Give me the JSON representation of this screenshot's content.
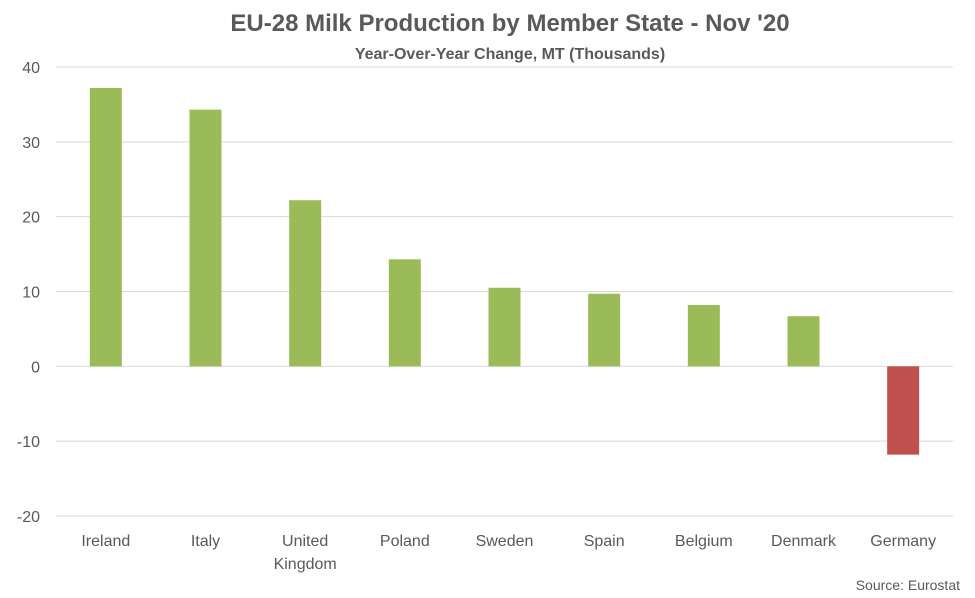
{
  "chart_data": {
    "type": "bar",
    "title": "EU-28 Milk Production by Member State - Nov '20",
    "subtitle": "Year-Over-Year Change, MT (Thousands)",
    "categories": [
      [
        "Ireland"
      ],
      [
        "Italy"
      ],
      [
        "United",
        "Kingdom"
      ],
      [
        "Poland"
      ],
      [
        "Sweden"
      ],
      [
        "Spain"
      ],
      [
        "Belgium"
      ],
      [
        "Denmark"
      ],
      [
        "Germany"
      ]
    ],
    "values": [
      37.2,
      34.3,
      22.2,
      14.3,
      10.5,
      9.7,
      8.2,
      6.7,
      -11.8
    ],
    "ylim": [
      -20,
      40
    ],
    "yticks": [
      -20,
      -10,
      0,
      10,
      20,
      30,
      40
    ],
    "grid": true,
    "colors": {
      "positive": "#9BBB59",
      "negative": "#C0504D",
      "grid": "#D9D9D9",
      "text": "#595959"
    },
    "source": "Source: Eurostat"
  }
}
